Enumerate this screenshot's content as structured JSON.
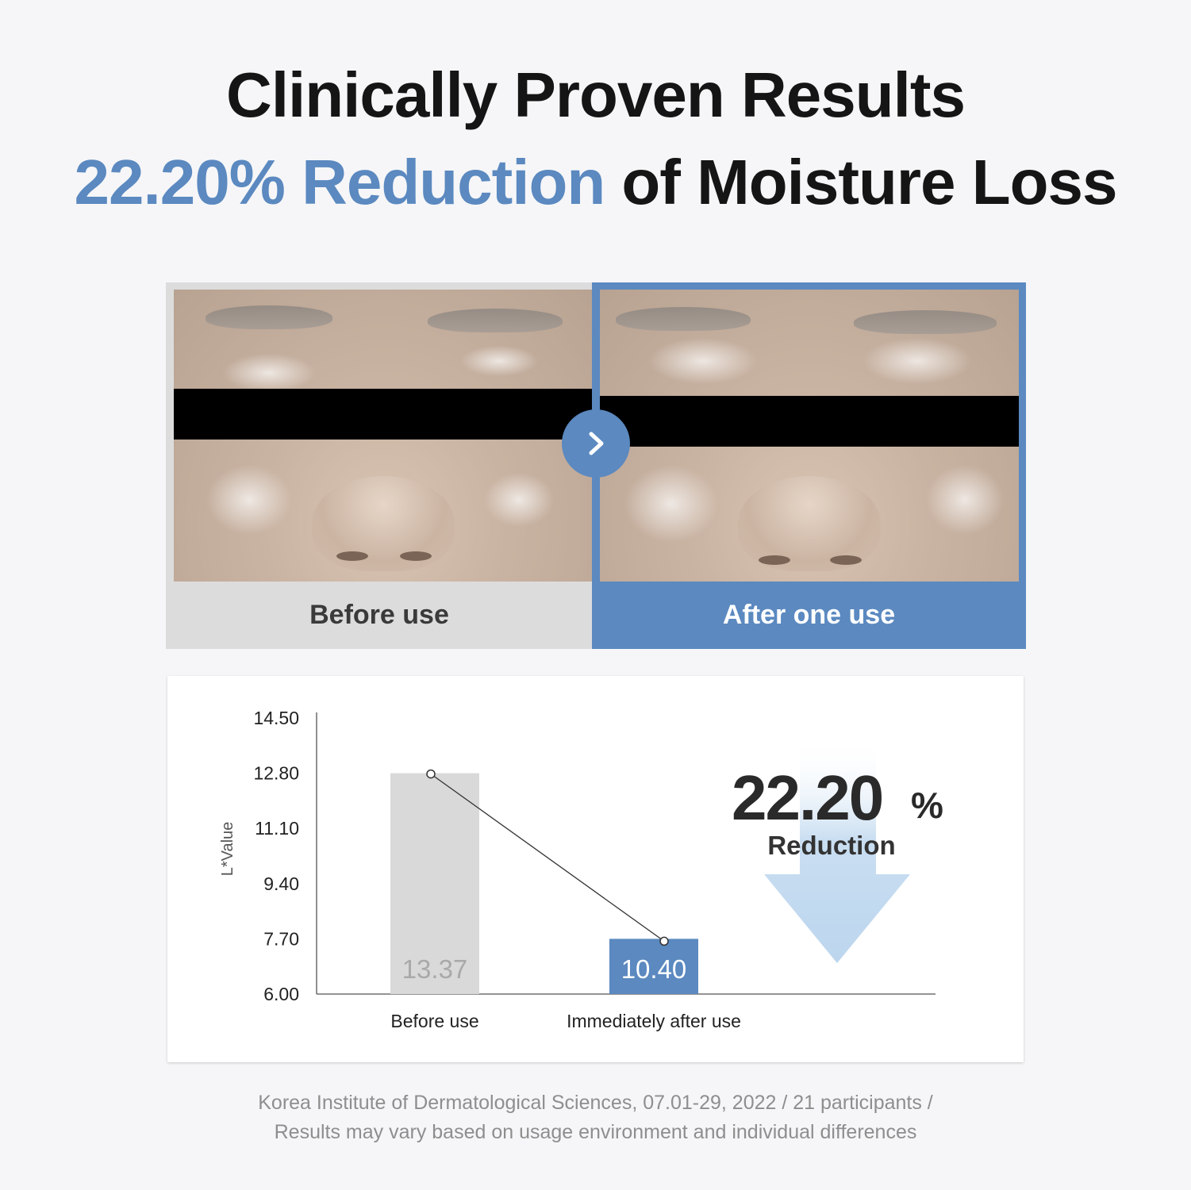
{
  "headline": {
    "line1": "Clinically Proven Results",
    "line2_accent": "22.20% Reduction",
    "line2_rest": " of Moisture Loss"
  },
  "colors": {
    "accent": "#5b89c0",
    "before_bar": "#d9d9d9",
    "arrow_light": "#bcd6ee",
    "text_dark": "#151515"
  },
  "comparison": {
    "before_label": "Before use",
    "after_label": "After one use",
    "arrow_icon": "chevron-right-icon"
  },
  "chart_data": {
    "type": "bar",
    "ylabel": "L*Value",
    "ylim": [
      6.0,
      14.5
    ],
    "yticks": [
      "14.50",
      "12.80",
      "11.10",
      "9.40",
      "7.70",
      "6.00"
    ],
    "categories": [
      "Before use",
      "Immediately after use"
    ],
    "values": [
      13.37,
      10.4
    ],
    "value_labels": [
      "13.37",
      "10.40"
    ],
    "connecting_line": true,
    "callout": {
      "value": "22.20",
      "unit": "%",
      "label": "Reduction",
      "icon": "down-arrow-icon"
    }
  },
  "footnote": {
    "line1": "Korea Institute of Dermatological Sciences, 07.01-29, 2022 / 21 participants /",
    "line2": "Results may vary based on usage environment and individual differences"
  }
}
